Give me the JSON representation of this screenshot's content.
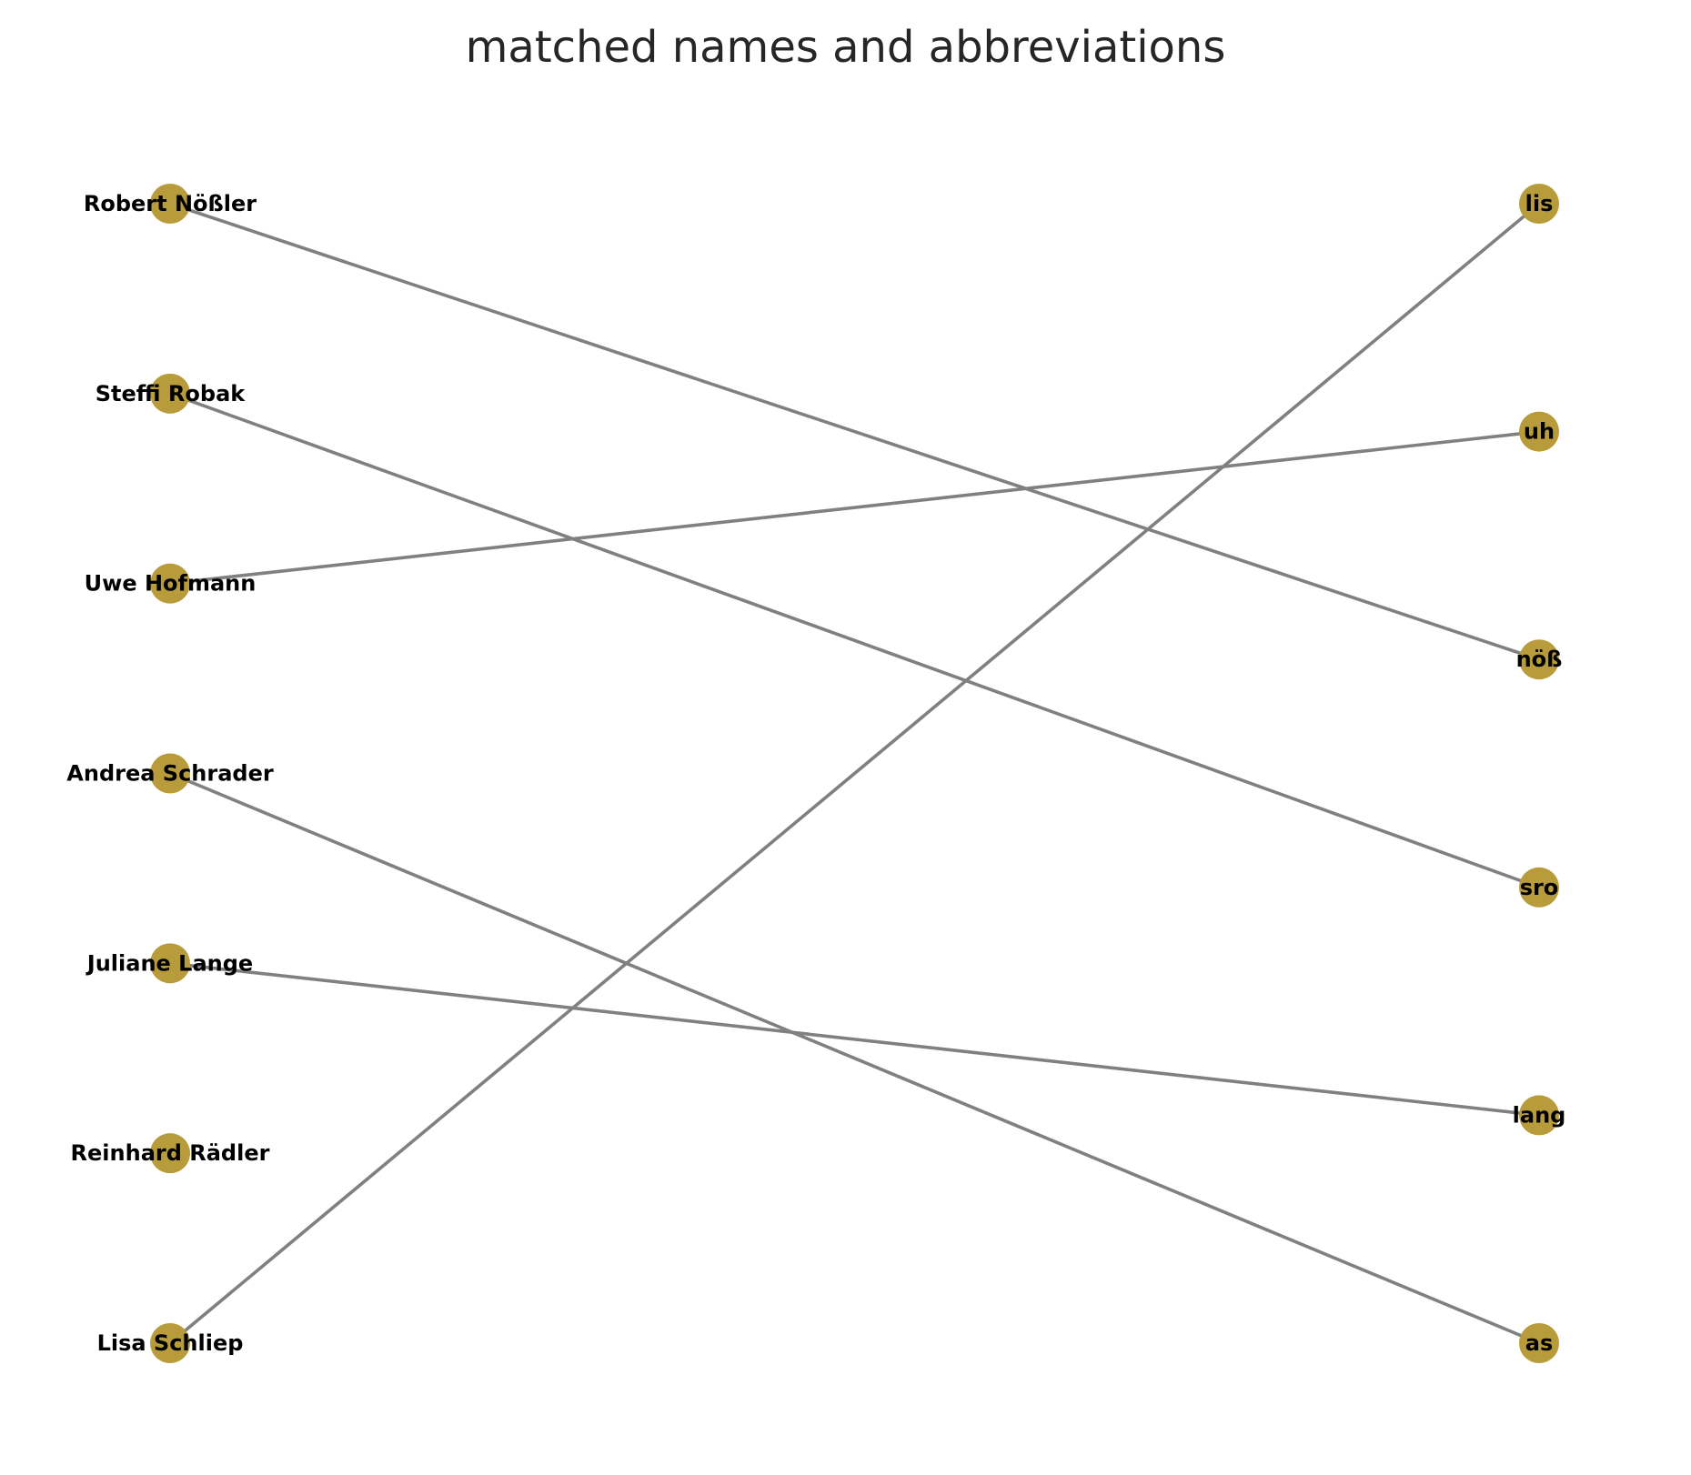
{
  "title": "matched names and abbreviations",
  "colors": {
    "node": "#b89b3a",
    "edge": "#808080",
    "label": "#000000",
    "title": "#262626"
  },
  "graph": {
    "type": "bipartite-matching",
    "left_nodes": [
      "Robert Nößler",
      "Steffi Robak",
      "Uwe Hofmann",
      "Andrea Schrader",
      "Juliane Lange",
      "Reinhard Rädler",
      "Lisa Schliep"
    ],
    "right_nodes": [
      "lis",
      "uh",
      "nöß",
      "sro",
      "lang",
      "as"
    ],
    "edges": [
      {
        "from": "Robert Nößler",
        "to": "nöß"
      },
      {
        "from": "Steffi Robak",
        "to": "sro"
      },
      {
        "from": "Uwe Hofmann",
        "to": "uh"
      },
      {
        "from": "Andrea Schrader",
        "to": "as"
      },
      {
        "from": "Juliane Lange",
        "to": "lang"
      },
      {
        "from": "Lisa Schliep",
        "to": "lis"
      }
    ]
  }
}
